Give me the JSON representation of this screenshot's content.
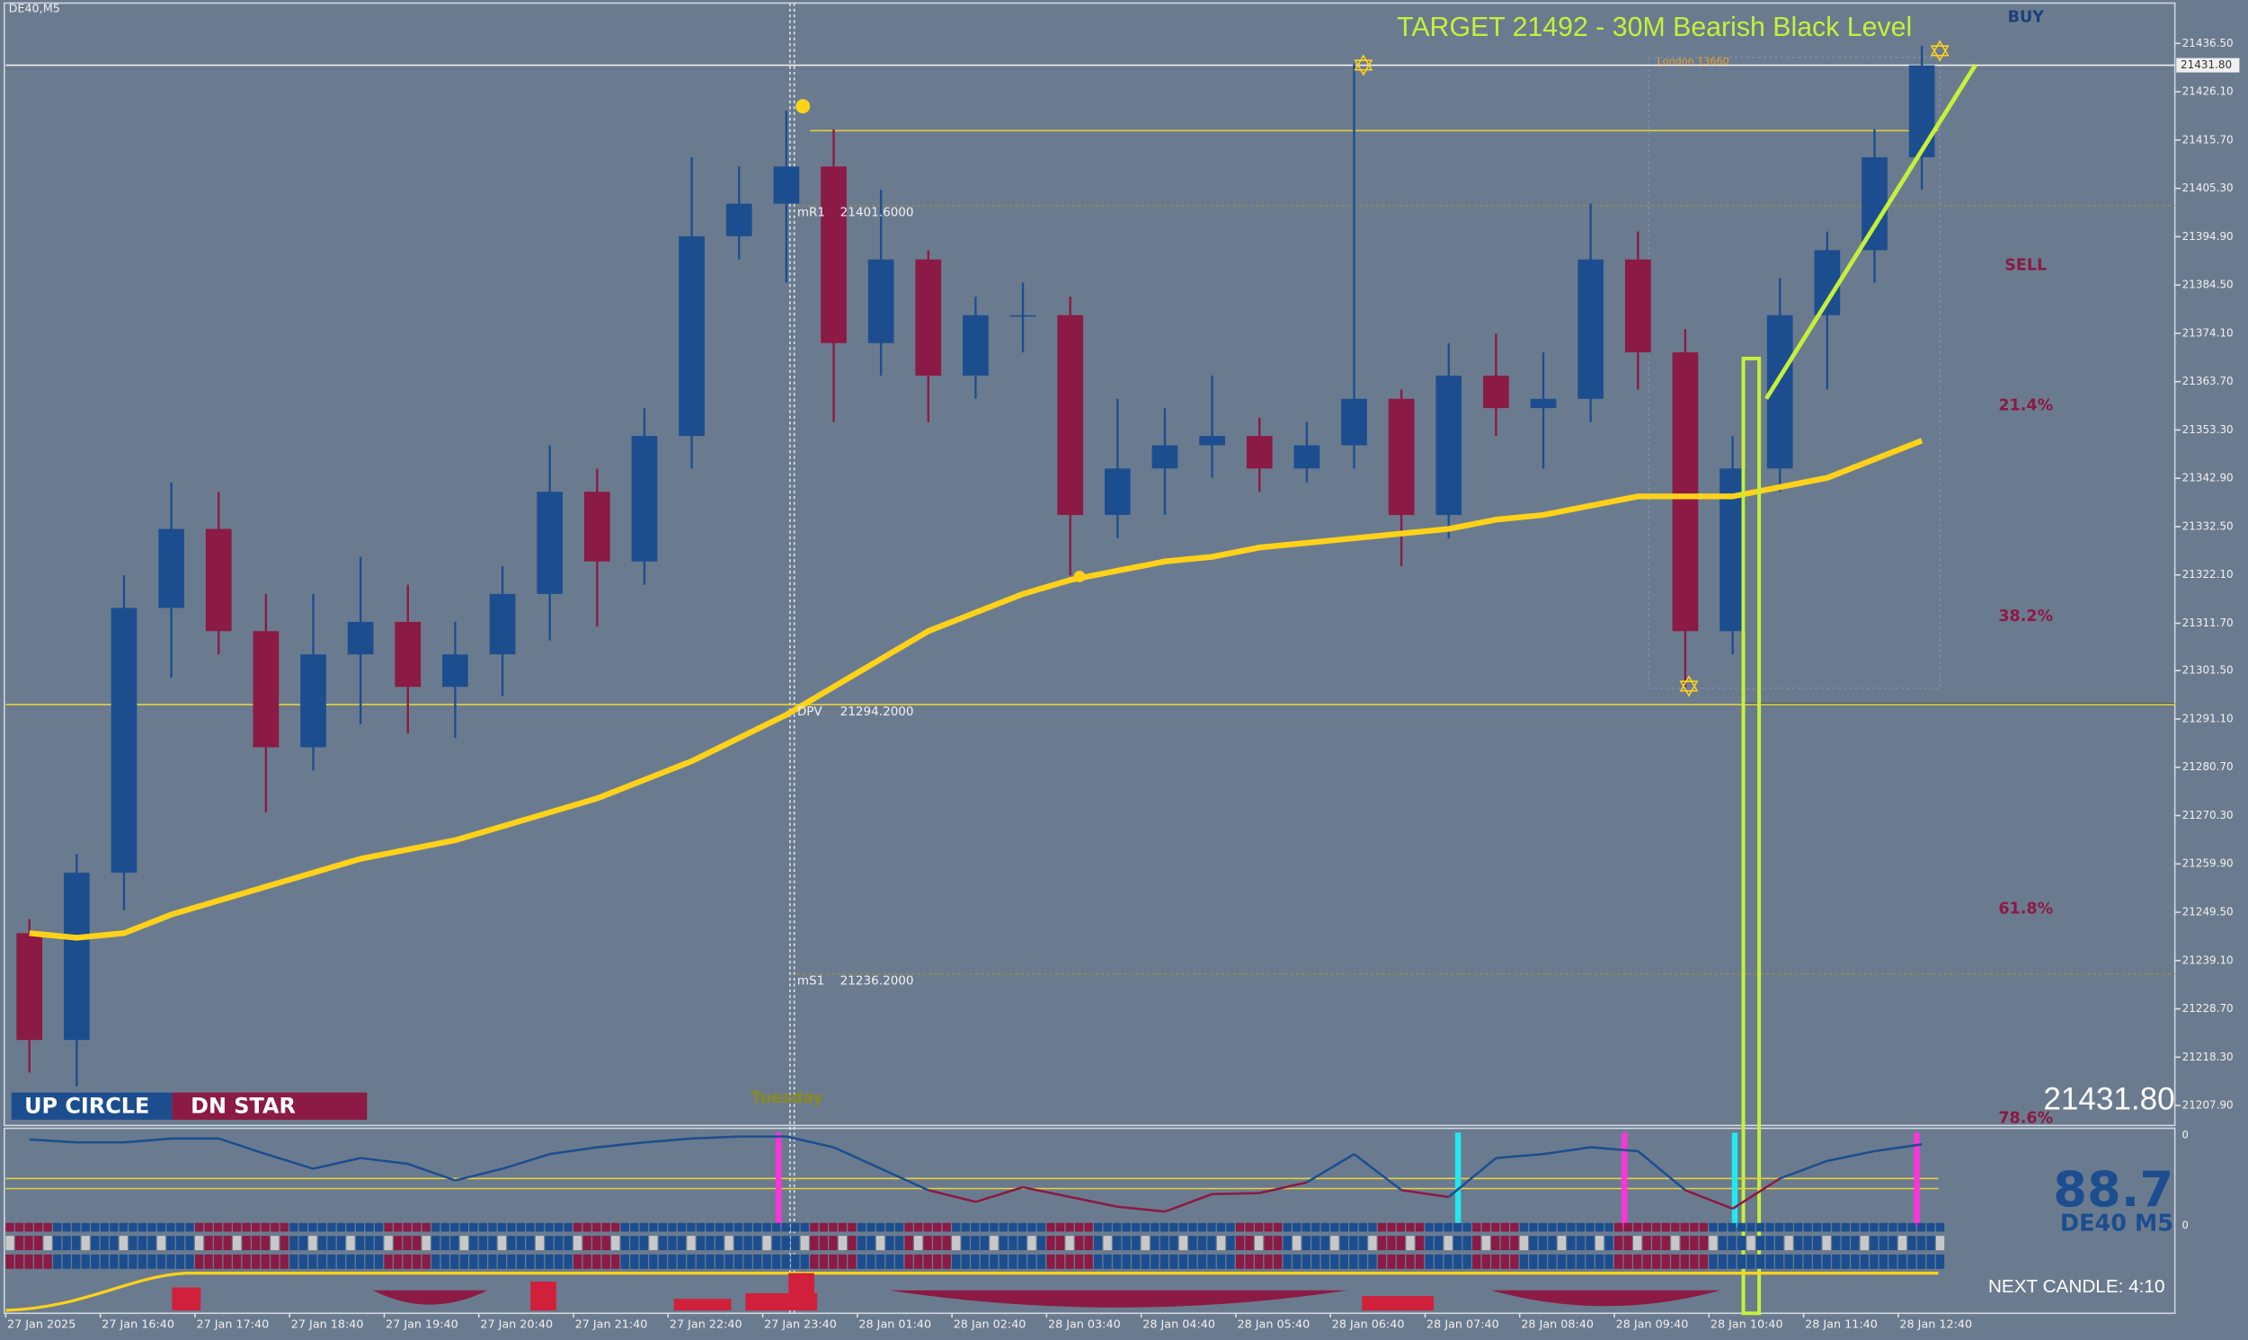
{
  "chart_data": {
    "type": "candlestick",
    "title": "DE40,M5",
    "annotation": "TARGET 21492 - 30M Bearish Black Level",
    "buy_label": "BUY",
    "sell_label": "SELL",
    "fib_labels": [
      "21.4%",
      "38.2%",
      "61.8%",
      "78.6%"
    ],
    "session_label": "London 13660",
    "day_label": "Tuesday",
    "legend_badges": [
      "UP CIRCLE",
      "DN STAR"
    ],
    "levels": [
      {
        "name": "mR1",
        "value": 21401.6,
        "label": "21401.6000"
      },
      {
        "name": "DPV",
        "value": 21294.2,
        "label": "21294.2000"
      },
      {
        "name": "mS1",
        "value": 21236.2,
        "label": "21236.2000"
      }
    ],
    "current_price": {
      "value": 21431.8,
      "label": "21431.80"
    },
    "strength": "88.7",
    "symbol_badge": "DE40 M5",
    "next_candle": "NEXT CANDLE: 4:10",
    "x_labels": [
      "27 Jan 2025",
      "27 Jan 16:40",
      "27 Jan 17:40",
      "27 Jan 18:40",
      "27 Jan 19:40",
      "27 Jan 20:40",
      "27 Jan 21:40",
      "27 Jan 22:40",
      "27 Jan 23:40",
      "28 Jan 01:40",
      "28 Jan 02:40",
      "28 Jan 03:40",
      "28 Jan 04:40",
      "28 Jan 05:40",
      "28 Jan 06:40",
      "28 Jan 07:40",
      "28 Jan 08:40",
      "28 Jan 09:40",
      "28 Jan 10:40",
      "28 Jan 11:40",
      "28 Jan 12:40"
    ],
    "open": [
      21245,
      21222,
      21258,
      21315,
      21332,
      21310,
      21285,
      21305,
      21312,
      21298,
      21305,
      21318,
      21340,
      21325,
      21352,
      21395,
      21402,
      21410,
      21372,
      21390,
      21365,
      21378,
      21378,
      21335,
      21345,
      21350,
      21352,
      21345,
      21350,
      21360,
      21335,
      21365,
      21358,
      21360,
      21390,
      21370,
      21310,
      21345,
      21378,
      21392,
      21412
    ],
    "high": [
      21248,
      21262,
      21322,
      21342,
      21340,
      21318,
      21318,
      21326,
      21320,
      21312,
      21324,
      21350,
      21345,
      21358,
      21412,
      21410,
      21422,
      21418,
      21405,
      21392,
      21382,
      21385,
      21382,
      21360,
      21358,
      21365,
      21356,
      21355,
      21432,
      21362,
      21372,
      21374,
      21370,
      21402,
      21396,
      21375,
      21352,
      21386,
      21396,
      21418,
      21436
    ],
    "low": [
      21215,
      21212,
      21250,
      21300,
      21305,
      21271,
      21280,
      21290,
      21288,
      21287,
      21296,
      21308,
      21311,
      21320,
      21345,
      21390,
      21385,
      21355,
      21365,
      21355,
      21360,
      21370,
      21322,
      21330,
      21335,
      21343,
      21340,
      21342,
      21345,
      21324,
      21330,
      21352,
      21345,
      21355,
      21362,
      21298,
      21305,
      21340,
      21362,
      21385,
      21405
    ],
    "close": [
      21222,
      21258,
      21315,
      21332,
      21310,
      21285,
      21305,
      21312,
      21298,
      21305,
      21318,
      21340,
      21325,
      21352,
      21395,
      21402,
      21410,
      21372,
      21390,
      21365,
      21378,
      21378,
      21335,
      21345,
      21350,
      21352,
      21345,
      21350,
      21360,
      21335,
      21365,
      21358,
      21360,
      21390,
      21370,
      21310,
      21345,
      21378,
      21392,
      21412,
      21431.8
    ],
    "up_color": "#1c4e8f",
    "down_color": "#8b1a44",
    "ma": {
      "color": "#ffd21a",
      "values": [
        21245,
        21244,
        21245,
        21249,
        21252,
        21255,
        21258,
        21261,
        21263,
        21265,
        21268,
        21271,
        21274,
        21278,
        21282,
        21287,
        21292,
        21298,
        21304,
        21310,
        21314,
        21318,
        21321,
        21323,
        21325,
        21326,
        21328,
        21329,
        21330,
        21331,
        21332,
        21334,
        21335,
        21337,
        21339,
        21339,
        21339,
        21341,
        21343,
        21347,
        21351
      ]
    },
    "oscillator": {
      "values": [
        93,
        90,
        90,
        94,
        94,
        78,
        63,
        74,
        68,
        51,
        63,
        78,
        85,
        90,
        94,
        96,
        96,
        85,
        63,
        41,
        29,
        44,
        34,
        24,
        19,
        37,
        38,
        49,
        78,
        41,
        34,
        74,
        78,
        85,
        81,
        41,
        22,
        53,
        71,
        81,
        88
      ],
      "ylim": [
        0,
        100
      ],
      "axis_labels": [
        "0",
        "0"
      ]
    },
    "ylim": [
      21203.6,
      21445.8
    ],
    "yticks": [
      {
        "value": 21436.5,
        "label": "21436.50"
      },
      {
        "value": 21426.1,
        "label": "21426.10"
      },
      {
        "value": 21415.7,
        "label": "21415.70"
      },
      {
        "value": 21405.3,
        "label": "21405.30"
      },
      {
        "value": 21394.9,
        "label": "21394.90"
      },
      {
        "value": 21384.5,
        "label": "21384.50"
      },
      {
        "value": 21374.1,
        "label": "21374.10"
      },
      {
        "value": 21363.7,
        "label": "21363.70"
      },
      {
        "value": 21353.3,
        "label": "21353.30"
      },
      {
        "value": 21342.9,
        "label": "21342.90"
      },
      {
        "value": 21332.5,
        "label": "21332.50"
      },
      {
        "value": 21322.1,
        "label": "21322.10"
      },
      {
        "value": 21311.7,
        "label": "21311.70"
      },
      {
        "value": 21301.5,
        "label": "21301.50"
      },
      {
        "value": 21291.1,
        "label": "21291.10"
      },
      {
        "value": 21280.7,
        "label": "21280.70"
      },
      {
        "value": 21270.3,
        "label": "21270.30"
      },
      {
        "value": 21259.9,
        "label": "21259.90"
      },
      {
        "value": 21249.5,
        "label": "21249.50"
      },
      {
        "value": 21239.1,
        "label": "21239.10"
      },
      {
        "value": 21228.7,
        "label": "21228.70"
      },
      {
        "value": 21218.3,
        "label": "21218.30"
      },
      {
        "value": 21207.9,
        "label": "21207.90"
      }
    ]
  }
}
